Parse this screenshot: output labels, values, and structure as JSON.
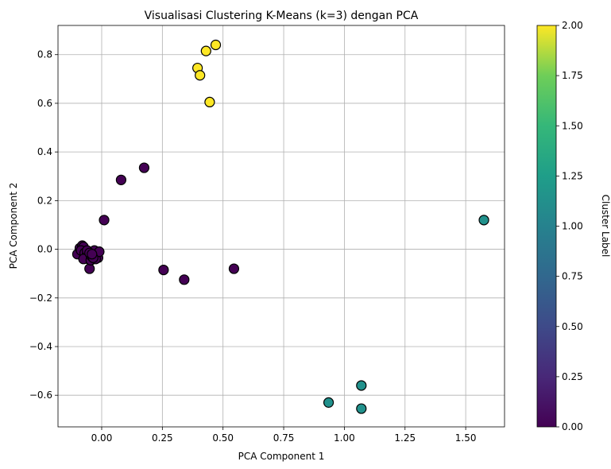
{
  "chart_data": {
    "type": "scatter",
    "title": "Visualisasi Clustering K-Means (k=3) dengan PCA",
    "xlabel": "PCA Component 1",
    "ylabel": "PCA Component 2",
    "xlim": [
      -0.18,
      1.66
    ],
    "ylim": [
      -0.73,
      0.92
    ],
    "x_ticks": [
      0.0,
      0.25,
      0.5,
      0.75,
      1.0,
      1.25,
      1.5
    ],
    "x_tick_labels": [
      "0.00",
      "0.25",
      "0.50",
      "0.75",
      "1.00",
      "1.25",
      "1.50"
    ],
    "y_ticks": [
      -0.6,
      -0.4,
      -0.2,
      0.0,
      0.2,
      0.4,
      0.6,
      0.8
    ],
    "y_tick_labels": [
      "−0.6",
      "−0.4",
      "−0.2",
      "0.0",
      "0.2",
      "0.4",
      "0.6",
      "0.8"
    ],
    "grid": true,
    "colormap": "viridis",
    "colors": {
      "cluster_0": "#440154",
      "cluster_1": "#21918c",
      "cluster_2": "#fde725"
    },
    "colorbar": {
      "label": "Cluster Label",
      "range": [
        0,
        2
      ],
      "ticks": [
        0.0,
        0.25,
        0.5,
        0.75,
        1.0,
        1.25,
        1.5,
        1.75,
        2.0
      ],
      "tick_labels": [
        "0.00",
        "0.25",
        "0.50",
        "0.75",
        "1.00",
        "1.25",
        "1.50",
        "1.75",
        "2.00"
      ]
    },
    "points": [
      {
        "x": 0.47,
        "y": 0.84,
        "cluster": 2
      },
      {
        "x": 0.43,
        "y": 0.815,
        "cluster": 2
      },
      {
        "x": 0.395,
        "y": 0.745,
        "cluster": 2
      },
      {
        "x": 0.405,
        "y": 0.715,
        "cluster": 2
      },
      {
        "x": 0.445,
        "y": 0.605,
        "cluster": 2
      },
      {
        "x": 1.575,
        "y": 0.12,
        "cluster": 1
      },
      {
        "x": 1.07,
        "y": -0.56,
        "cluster": 1
      },
      {
        "x": 0.935,
        "y": -0.63,
        "cluster": 1
      },
      {
        "x": 1.07,
        "y": -0.655,
        "cluster": 1
      },
      {
        "x": 0.175,
        "y": 0.335,
        "cluster": 0
      },
      {
        "x": 0.08,
        "y": 0.285,
        "cluster": 0
      },
      {
        "x": 0.01,
        "y": 0.12,
        "cluster": 0
      },
      {
        "x": 0.255,
        "y": -0.085,
        "cluster": 0
      },
      {
        "x": 0.34,
        "y": -0.125,
        "cluster": 0
      },
      {
        "x": 0.545,
        "y": -0.08,
        "cluster": 0
      },
      {
        "x": -0.05,
        "y": -0.08,
        "cluster": 0
      },
      {
        "x": -0.1,
        "y": -0.02,
        "cluster": 0
      },
      {
        "x": -0.09,
        "y": 0.005,
        "cluster": 0
      },
      {
        "x": -0.08,
        "y": 0.015,
        "cluster": 0
      },
      {
        "x": -0.075,
        "y": 0.01,
        "cluster": 0
      },
      {
        "x": -0.085,
        "y": -0.005,
        "cluster": 0
      },
      {
        "x": -0.07,
        "y": -0.015,
        "cluster": 0
      },
      {
        "x": -0.06,
        "y": -0.02,
        "cluster": 0
      },
      {
        "x": -0.065,
        "y": -0.035,
        "cluster": 0
      },
      {
        "x": -0.055,
        "y": -0.04,
        "cluster": 0
      },
      {
        "x": -0.075,
        "y": -0.04,
        "cluster": 0
      },
      {
        "x": -0.045,
        "y": -0.045,
        "cluster": 0
      },
      {
        "x": -0.04,
        "y": -0.03,
        "cluster": 0
      },
      {
        "x": -0.035,
        "y": -0.01,
        "cluster": 0
      },
      {
        "x": -0.03,
        "y": -0.005,
        "cluster": 0
      },
      {
        "x": -0.02,
        "y": -0.02,
        "cluster": 0
      },
      {
        "x": -0.015,
        "y": -0.035,
        "cluster": 0
      },
      {
        "x": -0.025,
        "y": -0.04,
        "cluster": 0
      },
      {
        "x": -0.01,
        "y": -0.01,
        "cluster": 0
      },
      {
        "x": -0.045,
        "y": -0.025,
        "cluster": 0
      },
      {
        "x": -0.06,
        "y": -0.005,
        "cluster": 0
      },
      {
        "x": -0.05,
        "y": -0.015,
        "cluster": 0
      },
      {
        "x": -0.035,
        "y": -0.035,
        "cluster": 0
      },
      {
        "x": -0.04,
        "y": -0.02,
        "cluster": 0
      }
    ]
  }
}
